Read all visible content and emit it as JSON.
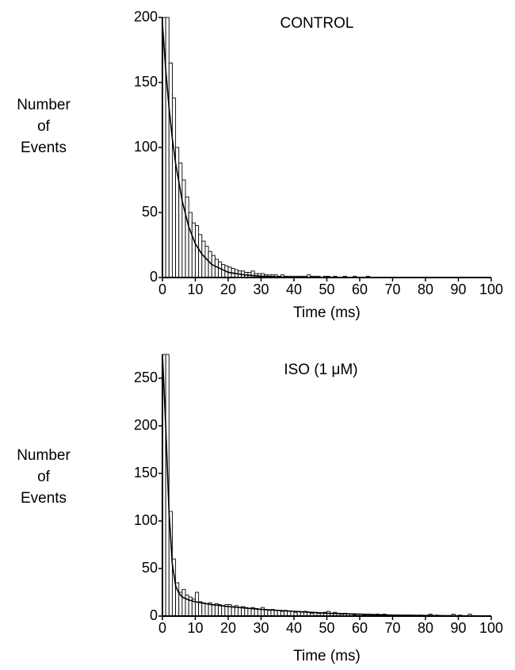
{
  "chart_data": [
    {
      "type": "histogram",
      "title": "CONTROL",
      "xlabel": "Time (ms)",
      "ylabel": [
        "Number",
        "of",
        "Events"
      ],
      "bins": [
        0,
        1,
        2,
        3,
        4,
        5,
        6,
        7,
        8,
        9,
        10,
        11,
        12,
        13,
        14,
        15,
        16,
        17,
        18,
        19,
        20,
        21,
        22,
        23,
        24,
        25,
        26,
        27,
        28,
        29,
        30,
        31,
        32,
        33,
        34,
        35,
        36,
        37,
        38,
        39,
        40,
        41,
        42,
        43,
        44,
        45,
        46,
        47,
        48,
        49,
        50,
        51,
        52,
        53,
        54,
        55,
        56,
        57,
        58,
        59,
        60,
        61,
        62,
        63,
        64,
        65,
        66,
        67,
        68,
        69,
        70,
        71,
        72,
        73,
        74,
        75,
        76,
        77,
        78,
        79,
        80,
        81,
        82,
        83,
        84,
        85,
        86,
        87,
        88,
        89,
        90,
        91,
        92,
        93,
        94,
        95,
        96,
        97,
        98,
        99,
        100
      ],
      "counts": [
        200,
        200,
        165,
        138,
        100,
        88,
        75,
        62,
        50,
        42,
        40,
        33,
        28,
        24,
        20,
        17,
        14,
        12,
        10,
        9,
        8,
        7,
        6,
        5,
        5,
        4,
        4,
        5,
        3,
        3,
        3,
        2,
        2,
        2,
        2,
        1,
        2,
        1,
        1,
        1,
        1,
        1,
        1,
        1,
        2,
        1,
        1,
        1,
        0,
        1,
        1,
        0,
        1,
        0,
        0,
        1,
        0,
        0,
        1,
        0,
        0,
        0,
        1,
        0,
        0,
        0,
        0,
        0,
        0,
        0,
        0,
        0,
        0,
        0,
        0,
        0,
        0,
        0,
        0,
        0,
        0,
        0,
        0,
        0,
        0,
        0,
        0,
        0,
        0,
        0,
        0,
        0,
        0,
        0,
        0,
        0,
        0,
        0,
        0,
        0
      ],
      "fit": {
        "x": [
          0,
          1,
          2,
          3,
          4,
          6,
          8,
          10,
          12,
          15,
          20,
          25,
          30,
          40,
          50,
          100
        ],
        "values": [
          195,
          160,
          131,
          107,
          88,
          59,
          39,
          26,
          18,
          10,
          4,
          2,
          1,
          0,
          0,
          0
        ]
      },
      "xlim": [
        0,
        100
      ],
      "xticks": [
        0,
        10,
        20,
        30,
        40,
        50,
        60,
        70,
        80,
        90,
        100
      ],
      "ylim": [
        0,
        200
      ],
      "yticks": [
        0,
        50,
        100,
        150,
        200
      ],
      "color": "#000000"
    },
    {
      "type": "histogram",
      "title": "ISO (1 μM)",
      "xlabel": "Time (ms)",
      "ylabel": [
        "Number",
        "of",
        "Events"
      ],
      "bins": [
        0,
        1,
        2,
        3,
        4,
        5,
        6,
        7,
        8,
        9,
        10,
        11,
        12,
        13,
        14,
        15,
        16,
        17,
        18,
        19,
        20,
        21,
        22,
        23,
        24,
        25,
        26,
        27,
        28,
        29,
        30,
        31,
        32,
        33,
        34,
        35,
        36,
        37,
        38,
        39,
        40,
        41,
        42,
        43,
        44,
        45,
        46,
        47,
        48,
        49,
        50,
        51,
        52,
        53,
        54,
        55,
        56,
        57,
        58,
        59,
        60,
        61,
        62,
        63,
        64,
        65,
        66,
        67,
        68,
        69,
        70,
        71,
        72,
        73,
        74,
        75,
        76,
        77,
        78,
        79,
        80,
        81,
        82,
        83,
        84,
        85,
        86,
        87,
        88,
        89,
        90,
        91,
        92,
        93,
        94,
        95,
        96,
        97,
        98,
        99,
        100
      ],
      "counts": [
        275,
        275,
        110,
        60,
        35,
        25,
        28,
        22,
        20,
        18,
        25,
        15,
        14,
        13,
        14,
        12,
        13,
        12,
        11,
        12,
        12,
        10,
        11,
        9,
        10,
        9,
        8,
        9,
        8,
        7,
        9,
        7,
        6,
        7,
        6,
        6,
        5,
        6,
        5,
        5,
        4,
        5,
        4,
        5,
        4,
        3,
        4,
        3,
        3,
        4,
        5,
        3,
        4,
        3,
        2,
        3,
        2,
        2,
        1,
        2,
        2,
        1,
        2,
        1,
        1,
        2,
        1,
        2,
        1,
        1,
        1,
        1,
        0,
        1,
        0,
        1,
        0,
        0,
        1,
        0,
        0,
        2,
        0,
        1,
        0,
        0,
        0,
        0,
        2,
        0,
        1,
        0,
        0,
        2,
        0,
        0,
        0,
        0,
        0,
        0
      ],
      "fit": {
        "x": [
          0,
          1,
          2,
          3,
          4,
          5,
          6,
          8,
          10,
          15,
          20,
          30,
          40,
          50,
          60,
          70,
          100
        ],
        "values": [
          275,
          200,
          110,
          55,
          32,
          24,
          20,
          17,
          15,
          12,
          10,
          7,
          5,
          3,
          2,
          1,
          0
        ]
      },
      "xlim": [
        0,
        100
      ],
      "xticks": [
        0,
        10,
        20,
        30,
        40,
        50,
        60,
        70,
        80,
        90,
        100
      ],
      "ylim": [
        0,
        275
      ],
      "yticks": [
        0,
        50,
        100,
        150,
        200,
        250
      ],
      "color": "#000000"
    }
  ]
}
